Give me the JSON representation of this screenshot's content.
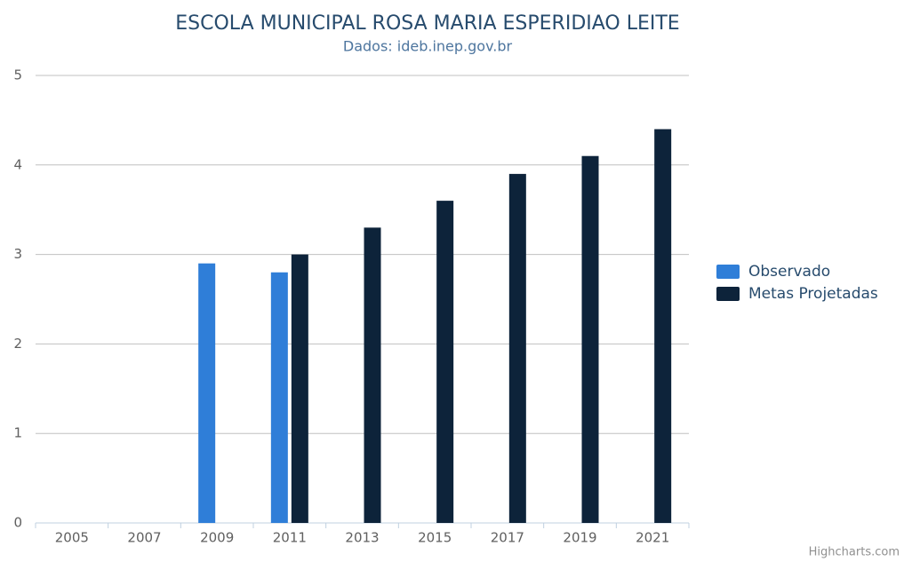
{
  "chart_data": {
    "type": "bar",
    "title": "ESCOLA MUNICIPAL ROSA MARIA ESPERIDIAO LEITE",
    "subtitle": "Dados: ideb.inep.gov.br",
    "credits": "Highcharts.com",
    "categories": [
      "2005",
      "2007",
      "2009",
      "2011",
      "2013",
      "2015",
      "2017",
      "2019",
      "2021"
    ],
    "series": [
      {
        "name": "Observado",
        "color": "#2f7ed8",
        "values": [
          null,
          null,
          2.9,
          2.8,
          null,
          null,
          null,
          null,
          null
        ]
      },
      {
        "name": "Metas Projetadas",
        "color": "#0d233a",
        "values": [
          null,
          null,
          null,
          3.0,
          3.3,
          3.6,
          3.9,
          4.1,
          4.4
        ]
      }
    ],
    "ylim": [
      0,
      5
    ],
    "yticks": [
      0,
      1,
      2,
      3,
      4,
      5
    ],
    "grid": true,
    "legend": "right"
  }
}
